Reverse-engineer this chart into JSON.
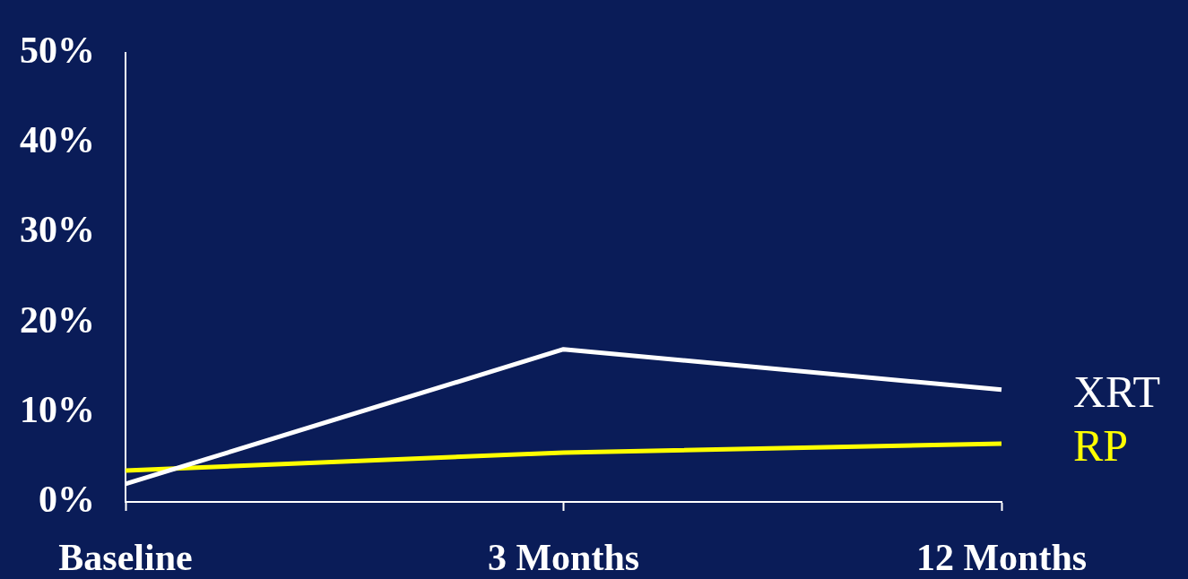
{
  "chart_data": {
    "type": "line",
    "categories": [
      "Baseline",
      "3 Months",
      "12 Months"
    ],
    "series": [
      {
        "name": "XRT",
        "color": "#ffffff",
        "values": [
          2,
          17,
          12.5
        ]
      },
      {
        "name": "RP",
        "color": "#ffff00",
        "values": [
          3.5,
          5.5,
          6.5
        ]
      }
    ],
    "ylim": [
      0,
      50
    ],
    "yticks": [
      {
        "value": 0,
        "label": "0%"
      },
      {
        "value": 10,
        "label": "10%"
      },
      {
        "value": 20,
        "label": "20%"
      },
      {
        "value": 30,
        "label": "30%"
      },
      {
        "value": 40,
        "label": "40%"
      },
      {
        "value": 50,
        "label": "50%"
      }
    ],
    "grid": false,
    "legend": false,
    "marker": "none",
    "line_style": "solid"
  }
}
